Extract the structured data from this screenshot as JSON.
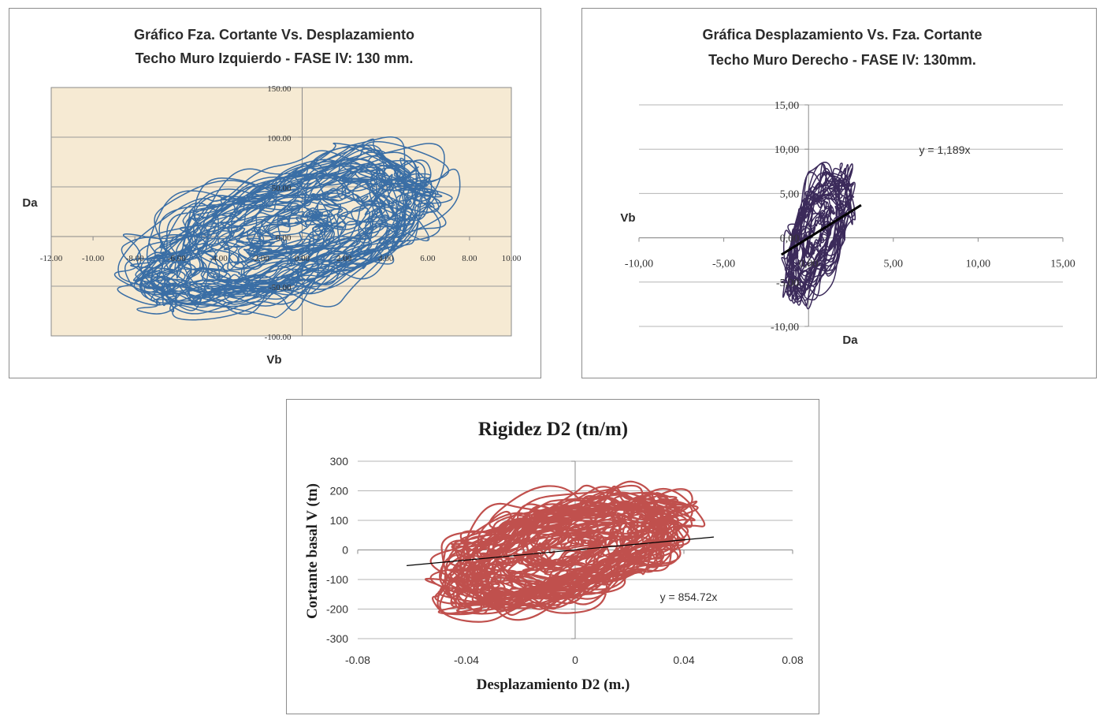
{
  "chart_data": [
    {
      "id": "left",
      "type": "line",
      "title_line1": "Gráfico Fza. Cortante Vs. Desplazamiento",
      "title_line2": "Techo Muro Izquierdo  - FASE IV: 130 mm.",
      "xlabel": "Vb",
      "ylabel": "Da",
      "xlim": [
        -12,
        10
      ],
      "ylim": [
        -100,
        150
      ],
      "xticks": [
        -12,
        -10,
        -8,
        -6,
        -4,
        -2,
        0,
        2,
        4,
        6,
        8,
        10
      ],
      "yticks": [
        -100,
        -50,
        0,
        50,
        100,
        150
      ],
      "xtick_labels": [
        "-12.00",
        "-10.00",
        "-8.00",
        "-6.00",
        "-4.00",
        "-2.00",
        "0.00",
        "2.00",
        "4.00",
        "6.00",
        "8.00",
        "10.00"
      ],
      "ytick_labels": [
        "-100.00",
        "-50.00",
        "0.00",
        "50.00",
        "100.00",
        "150.00"
      ],
      "grid": true,
      "plot_background": "#f6ead3",
      "series_color": "#3a6ea5",
      "trace": {
        "shape": "hysteresis",
        "x_range": [
          -9.8,
          7.9
        ],
        "y_range": [
          -88,
          105
        ],
        "center": [
          -0.6,
          2
        ],
        "cycles": 55
      }
    },
    {
      "id": "right",
      "type": "line",
      "title_line1": "Gráfica Desplazamiento Vs. Fza. Cortante",
      "title_line2": "Techo Muro Derecho - FASE IV: 130mm.",
      "xlabel": "Da",
      "ylabel": "Vb",
      "xlim": [
        -10,
        15
      ],
      "ylim": [
        -10,
        15
      ],
      "xticks": [
        -10,
        -5,
        0,
        5,
        10,
        15
      ],
      "yticks": [
        -10,
        -5,
        0,
        5,
        10,
        15
      ],
      "xtick_labels": [
        "-10,00",
        "-5,00",
        "0,00",
        "5,00",
        "10,00",
        "15,00"
      ],
      "ytick_labels": [
        "-10,00",
        "-5,00",
        "0,00",
        "5,00",
        "10,00",
        "15,00"
      ],
      "grid": true,
      "series_color": "#3b2a5a",
      "trendline": {
        "slope": 1.189,
        "x_from": -1.6,
        "x_to": 3.1,
        "color": "#000000",
        "label": "y = 1,189x"
      },
      "trace": {
        "shape": "hysteresis",
        "x_range": [
          -1.8,
          3.0
        ],
        "y_range": [
          -8.8,
          9.5
        ],
        "center": [
          0.4,
          0.5
        ],
        "cycles": 30
      }
    },
    {
      "id": "bottom",
      "type": "line",
      "title": "Rigidez D2 (tn/m)",
      "xlabel": "Desplazamiento D2 (m.)",
      "ylabel": "Cortante basal V (tn)",
      "xlim": [
        -0.08,
        0.08
      ],
      "ylim": [
        -300,
        300
      ],
      "xticks": [
        -0.08,
        -0.04,
        0,
        0.04,
        0.08
      ],
      "yticks": [
        -300,
        -200,
        -100,
        0,
        100,
        200,
        300
      ],
      "xtick_labels": [
        "-0.08",
        "-0.04",
        "0",
        "0.04",
        "0.08"
      ],
      "ytick_labels": [
        "-300",
        "-200",
        "-100",
        "0",
        "100",
        "200",
        "300"
      ],
      "grid": true,
      "series_color": "#c0504d",
      "trendline": {
        "slope": 854.72,
        "x_from": -0.062,
        "x_to": 0.051,
        "color": "#000000",
        "label": "y = 854.72x"
      },
      "trace": {
        "shape": "hysteresis",
        "x_range": [
          -0.061,
          0.051
        ],
        "y_range": [
          -250,
          238
        ],
        "center": [
          -0.003,
          0
        ],
        "cycles": 60
      }
    }
  ]
}
